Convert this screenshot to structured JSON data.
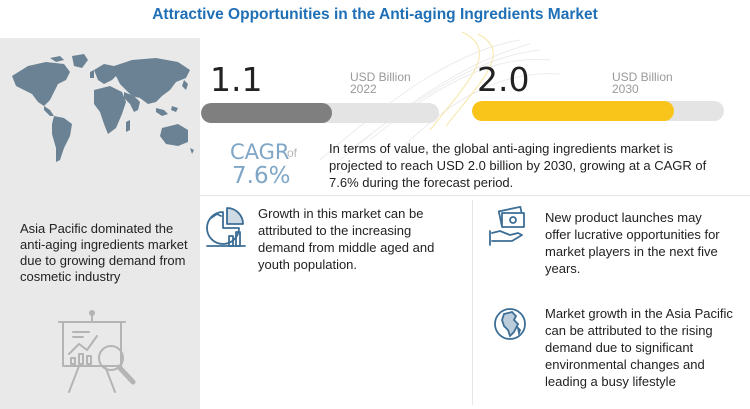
{
  "title": "Attractive Opportunities in the Anti-aging Ingredients Market",
  "left_panel": {
    "map_icon": "world-map-icon",
    "text": "Asia Pacific dominated the anti-aging ingredients market due to growing demand from cosmetic industry",
    "bottom_icon": "analysis-chart-magnifier-icon"
  },
  "market_2022": {
    "value": "1.1",
    "unit": "USD Billion",
    "year": "2022",
    "bar_color": "#7f7f7f",
    "bar_fraction": 0.55
  },
  "market_2030": {
    "value": "2.0",
    "unit": "USD Billion",
    "year": "2030",
    "bar_color": "#f9c51a",
    "bar_fraction": 0.8
  },
  "cagr": {
    "label": "CAGR",
    "of": "of",
    "value": "7.6%",
    "description": "In terms of value, the global anti-aging ingredients market is projected to reach USD 2.0 billion by 2030, growing at a CAGR of 7.6% during the forecast period."
  },
  "insights": [
    {
      "icon": "growth-chart-icon",
      "text": "Growth in this market can be attributed to the increasing demand from middle aged and youth population."
    },
    {
      "icon": "money-hand-icon",
      "text": "New product launches may offer lucrative opportunities for market players in the next five years."
    },
    {
      "icon": "globe-africa-icon",
      "text": "Market growth in the Asia Pacific can be attributed to the rising demand due to significant environmental changes and leading a busy lifestyle"
    }
  ],
  "colors": {
    "title": "#1f6fb6",
    "cagr": "#7fa6c6",
    "icon": "#3c6e96",
    "map": "#6a8293"
  }
}
